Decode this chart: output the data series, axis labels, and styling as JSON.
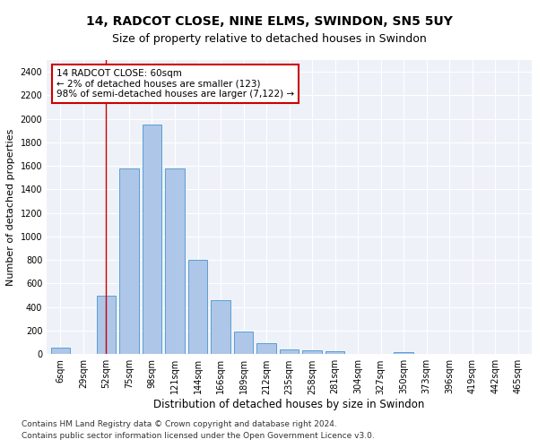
{
  "title1": "14, RADCOT CLOSE, NINE ELMS, SWINDON, SN5 5UY",
  "title2": "Size of property relative to detached houses in Swindon",
  "xlabel": "Distribution of detached houses by size in Swindon",
  "ylabel": "Number of detached properties",
  "footer1": "Contains HM Land Registry data © Crown copyright and database right 2024.",
  "footer2": "Contains public sector information licensed under the Open Government Licence v3.0.",
  "categories": [
    "6sqm",
    "29sqm",
    "52sqm",
    "75sqm",
    "98sqm",
    "121sqm",
    "144sqm",
    "166sqm",
    "189sqm",
    "212sqm",
    "235sqm",
    "258sqm",
    "281sqm",
    "304sqm",
    "327sqm",
    "350sqm",
    "373sqm",
    "396sqm",
    "419sqm",
    "442sqm",
    "465sqm"
  ],
  "values": [
    55,
    0,
    500,
    1580,
    1950,
    1580,
    800,
    460,
    190,
    90,
    40,
    30,
    25,
    0,
    0,
    20,
    0,
    0,
    0,
    0,
    0
  ],
  "bar_color": "#aec6e8",
  "bar_edge_color": "#5a9fd4",
  "vline_x": 2.0,
  "vline_color": "#cc0000",
  "annotation_text": "14 RADCOT CLOSE: 60sqm\n← 2% of detached houses are smaller (123)\n98% of semi-detached houses are larger (7,122) →",
  "annotation_box_color": "#ffffff",
  "annotation_box_edge": "#cc0000",
  "ylim": [
    0,
    2500
  ],
  "yticks": [
    0,
    200,
    400,
    600,
    800,
    1000,
    1200,
    1400,
    1600,
    1800,
    2000,
    2200,
    2400
  ],
  "background_color": "#eef2f8",
  "grid_color": "#ffffff",
  "title1_fontsize": 10,
  "title2_fontsize": 9,
  "xlabel_fontsize": 8.5,
  "ylabel_fontsize": 8,
  "tick_fontsize": 7,
  "footer_fontsize": 6.5,
  "annotation_fontsize": 7.5
}
